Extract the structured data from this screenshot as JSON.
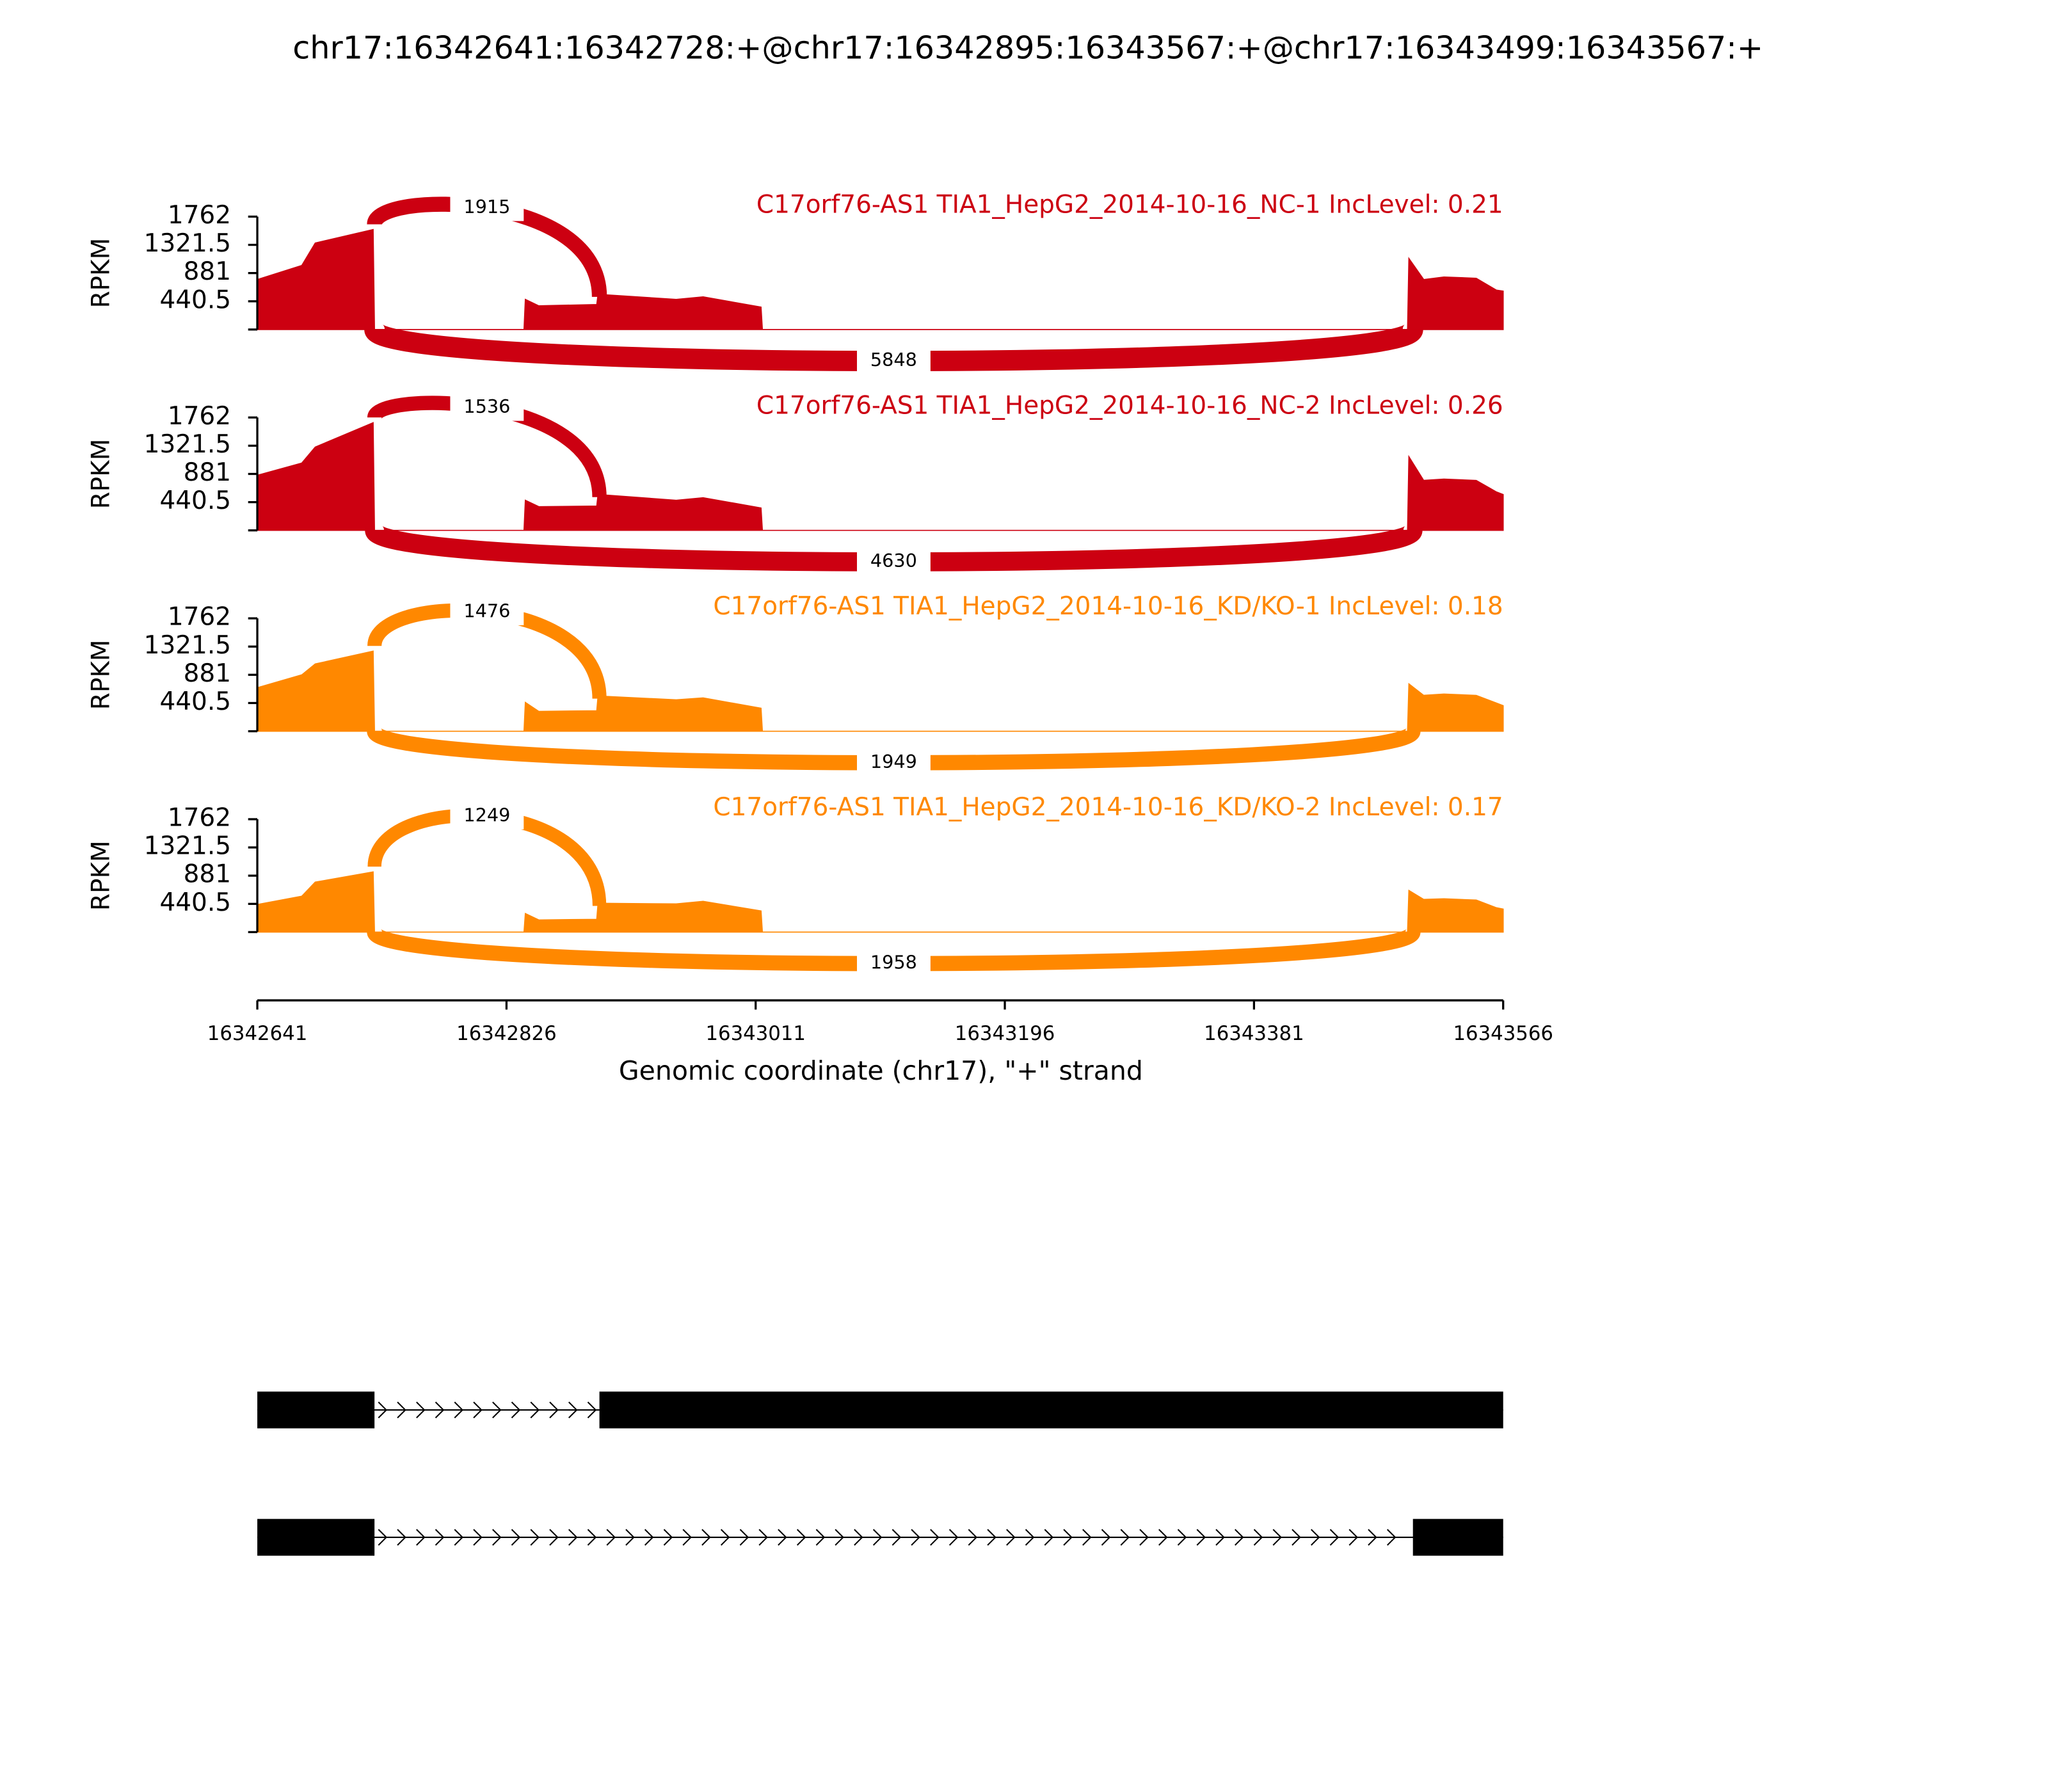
{
  "chart_data": {
    "type": "sashimi",
    "title": "chr17:16342641:16342728:+@chr17:16342895:16343567:+@chr17:16343499:16343567:+",
    "ylabel": "RPKM",
    "xlabel": "Genomic coordinate (chr17), \"+\" strand",
    "xlim": [
      16342641,
      16343566
    ],
    "xticks": [
      16342641,
      16342826,
      16343011,
      16343196,
      16343381,
      16343566
    ],
    "ylim": [
      0,
      1762
    ],
    "yticks": [
      440.5,
      881,
      1321.5,
      1762
    ],
    "x": [
      16342641,
      16342674,
      16342684,
      16342727,
      16342728,
      16342839,
      16342840,
      16342850,
      16342893,
      16342894,
      16342952,
      16342972,
      16343015,
      16343016,
      16343495,
      16343496,
      16343507,
      16343522,
      16343546,
      16343561,
      16343566
    ],
    "panels": [
      {
        "label": "C17orf76-AS1 TIA1_HepG2_2014-10-16_NC-1 IncLevel: 0.21",
        "color": "#cc0011",
        "values": [
          780,
          1000,
          1350,
          1560,
          0,
          0,
          470,
          370,
          390,
          550,
          470,
          510,
          350,
          0,
          0,
          1110,
          780,
          820,
          800,
          615,
          600
        ],
        "junctions": [
          {
            "start": 16342728,
            "end": 16342895,
            "count": 1915
          },
          {
            "start": 16342728,
            "end": 16343499,
            "count": 5848
          }
        ]
      },
      {
        "label": "C17orf76-AS1 TIA1_HepG2_2014-10-16_NC-2 IncLevel: 0.26",
        "color": "#cc0011",
        "values": [
          860,
          1050,
          1300,
          1680,
          0,
          0,
          470,
          370,
          380,
          560,
          470,
          510,
          350,
          0,
          0,
          1150,
          780,
          800,
          780,
          600,
          560
        ],
        "junctions": [
          {
            "start": 16342728,
            "end": 16342895,
            "count": 1536
          },
          {
            "start": 16342728,
            "end": 16343499,
            "count": 4630
          }
        ]
      },
      {
        "label": "C17orf76-AS1 TIA1_HepG2_2014-10-16_KD/KO-1 IncLevel: 0.18",
        "color": "#ff8800",
        "values": [
          680,
          880,
          1050,
          1250,
          0,
          0,
          450,
          310,
          320,
          550,
          490,
          520,
          360,
          0,
          0,
          740,
          560,
          580,
          560,
          440,
          400
        ],
        "junctions": [
          {
            "start": 16342728,
            "end": 16342895,
            "count": 1476
          },
          {
            "start": 16342728,
            "end": 16343499,
            "count": 1949
          }
        ]
      },
      {
        "label": "C17orf76-AS1 TIA1_HepG2_2014-10-16_KD/KO-2 IncLevel: 0.17",
        "color": "#ff8800",
        "values": [
          430,
          560,
          780,
          940,
          0,
          0,
          290,
          190,
          200,
          450,
          440,
          480,
          330,
          0,
          0,
          650,
          510,
          520,
          500,
          380,
          360
        ],
        "junctions": [
          {
            "start": 16342728,
            "end": 16342895,
            "count": 1249
          },
          {
            "start": 16342728,
            "end": 16343499,
            "count": 1958
          }
        ]
      }
    ],
    "transcripts": [
      {
        "exons": [
          [
            16342641,
            16342728
          ],
          [
            16342895,
            16343566
          ]
        ]
      },
      {
        "exons": [
          [
            16342641,
            16342728
          ],
          [
            16343499,
            16343566
          ]
        ]
      }
    ]
  }
}
